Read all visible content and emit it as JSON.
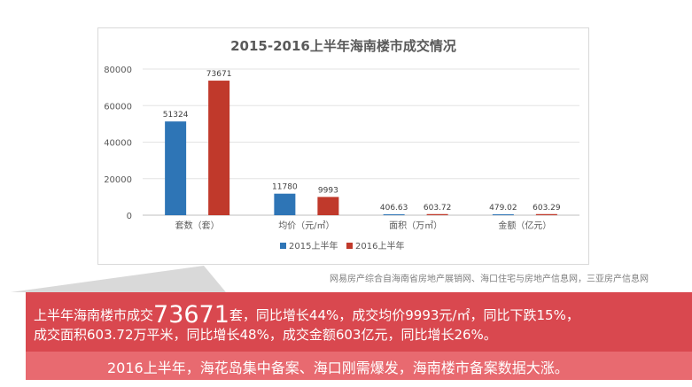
{
  "chart_data": {
    "type": "bar",
    "title": "2015-2016上半年海南楼市成交情况",
    "categories": [
      "套数（套）",
      "均价（元/㎡）",
      "面积（万㎡）",
      "金额（亿元）"
    ],
    "series": [
      {
        "name": "2015上半年",
        "color": "#2e75b6",
        "values": [
          51324,
          11780,
          406.63,
          479.02
        ],
        "labels": [
          "51324",
          "11780",
          "406.63",
          "479.02"
        ]
      },
      {
        "name": "2016上半年",
        "color": "#c0392b",
        "values": [
          73671,
          9993,
          603.72,
          603.29
        ],
        "labels": [
          "73671",
          "9993",
          "603.72",
          "603.29"
        ]
      }
    ],
    "ylim": [
      0,
      80000
    ],
    "yticks": [
      0,
      20000,
      40000,
      60000,
      80000
    ],
    "ytick_labels": [
      "0",
      "20000",
      "40000",
      "60000",
      "80000"
    ],
    "grid": true,
    "legend_position": "bottom"
  },
  "source_note": "网易房产综合自海南省房地产展销网、海口住宅与房地产信息网，三亚房产信息网",
  "callout": {
    "line1_pre": "上半年海南楼市成交",
    "line1_big": "73671",
    "line1_post": "套，同比增长44%，成交均价9993元/㎡，同比下跌15%，",
    "line2": "成交面积603.72万平米，同比增长48%，成交金额603亿元，同比增长26%。",
    "band": "2016上半年，海花岛集中备案、海口刚需爆发，海南楼市备案数据大涨。"
  },
  "colors": {
    "callout_bg": "#d9484f",
    "band_bg": "#e86a70",
    "series_2015": "#2e75b6",
    "series_2016": "#c0392b"
  }
}
